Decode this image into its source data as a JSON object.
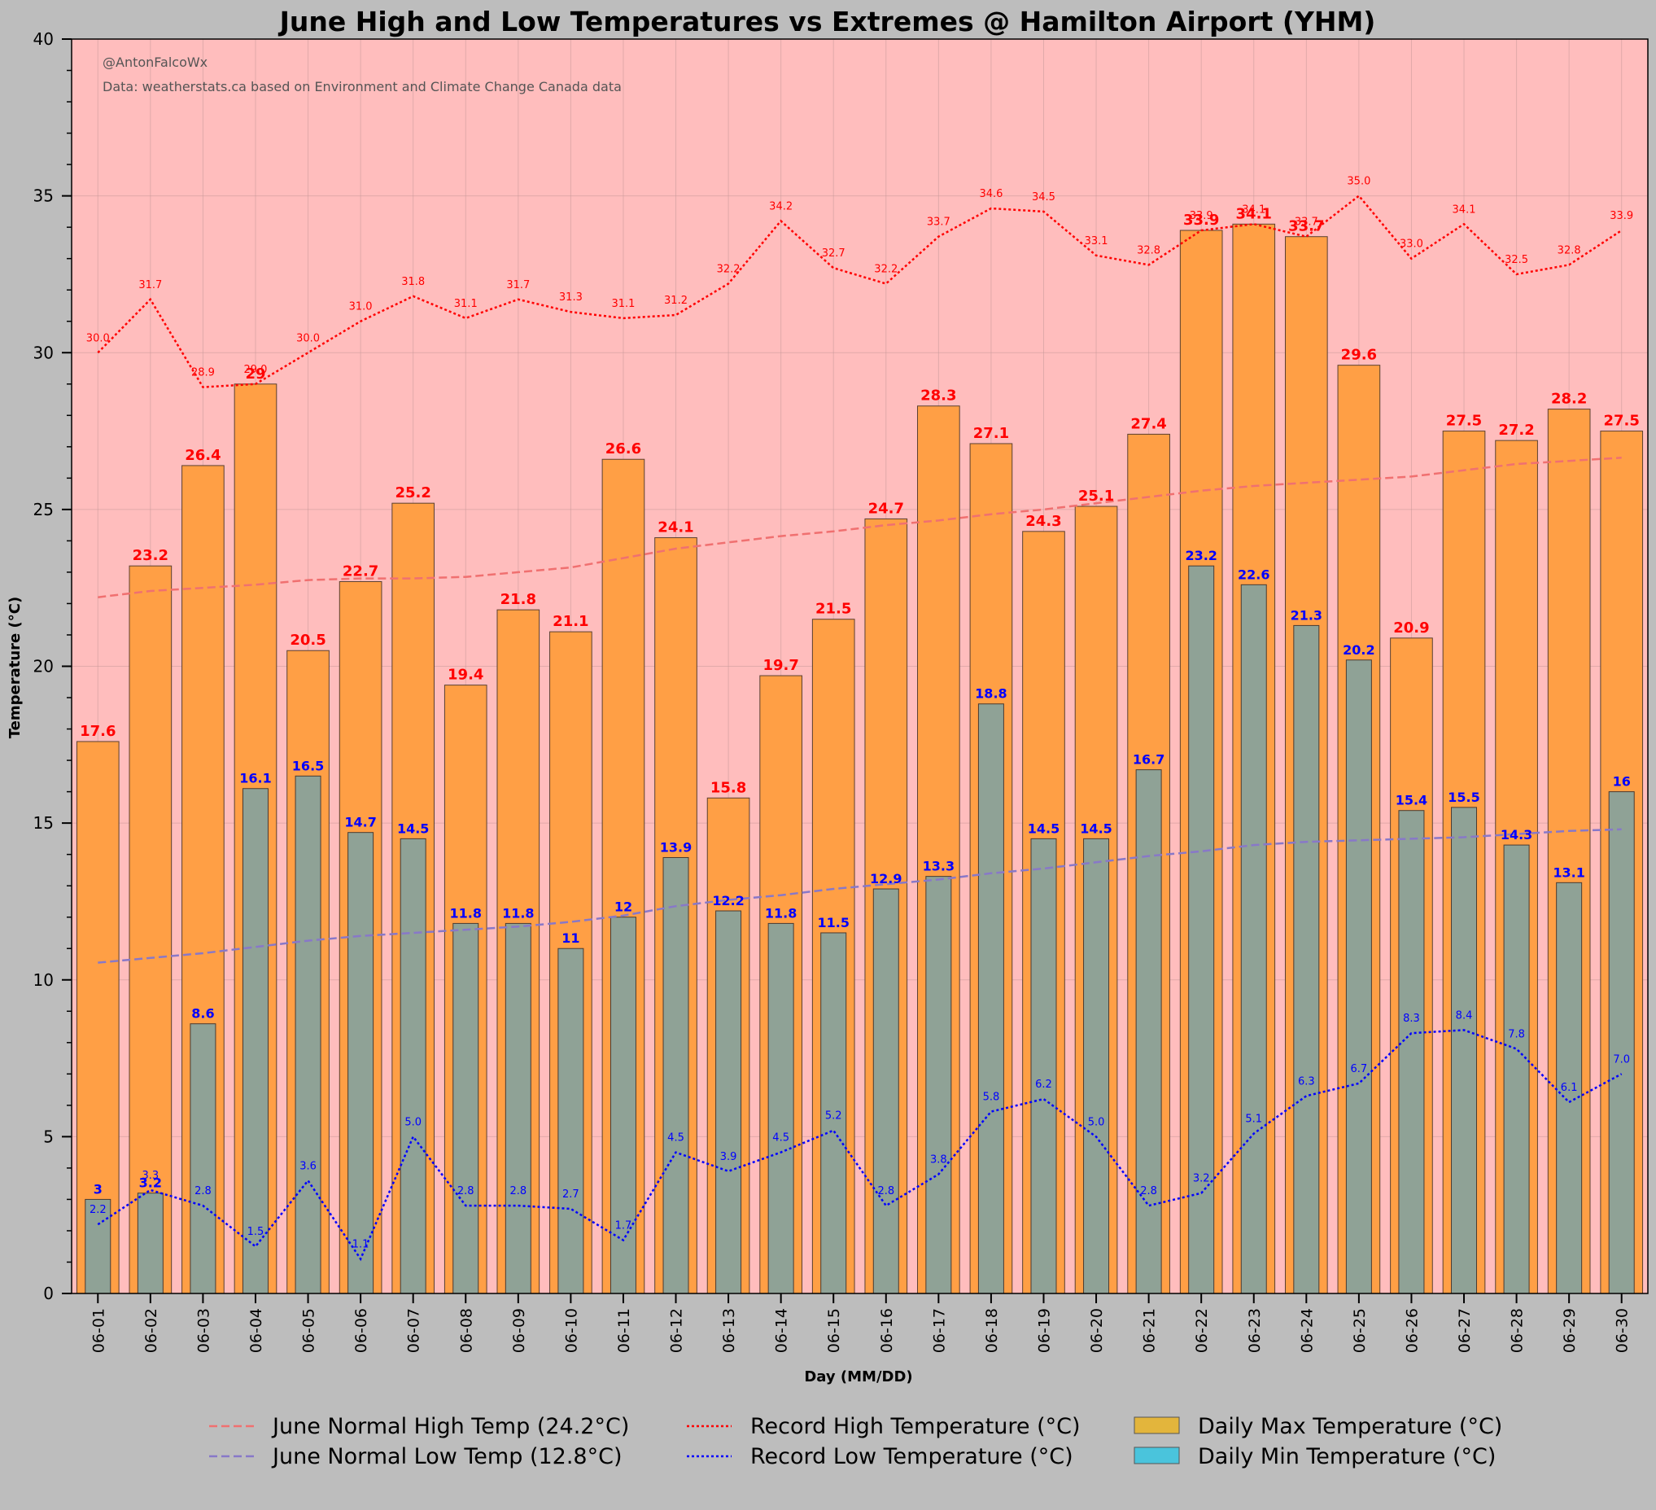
{
  "chart_data": {
    "type": "bar",
    "title": "June High and Low Temperatures vs Extremes @ Hamilton Airport (YHM)",
    "xlabel": "Day (MM/DD)",
    "ylabel": "Temperature (°C)",
    "ylim": [
      0,
      40
    ],
    "yticks": [
      0,
      5,
      10,
      15,
      20,
      25,
      30,
      35,
      40
    ],
    "grid": true,
    "credit": "@AntonFalcoWx",
    "source": "Data: weatherstats.ca based on Environment and Climate Change Canada data",
    "categories": [
      "06-01",
      "06-02",
      "06-03",
      "06-04",
      "06-05",
      "06-06",
      "06-07",
      "06-08",
      "06-09",
      "06-10",
      "06-11",
      "06-12",
      "06-13",
      "06-14",
      "06-15",
      "06-16",
      "06-17",
      "06-18",
      "06-19",
      "06-20",
      "06-21",
      "06-22",
      "06-23",
      "06-24",
      "06-25",
      "06-26",
      "06-27",
      "06-28",
      "06-29",
      "06-30"
    ],
    "series": [
      {
        "name": "Daily Max Temperature (°C)",
        "kind": "bar",
        "color": "#ff9f45",
        "values": [
          17.6,
          23.2,
          26.4,
          29,
          20.5,
          22.7,
          25.2,
          19.4,
          21.8,
          21.1,
          26.6,
          24.1,
          15.8,
          19.7,
          21.5,
          24.7,
          28.3,
          27.1,
          24.3,
          25.1,
          27.4,
          33.9,
          34.1,
          33.7,
          29.6,
          20.9,
          27.5,
          27.2,
          28.2,
          27.5
        ],
        "labels": [
          "17.6",
          "23.2",
          "26.4",
          "29",
          "20.5",
          "22.7",
          "25.2",
          "19.4",
          "21.8",
          "21.1",
          "26.6",
          "24.1",
          "15.8",
          "19.7",
          "21.5",
          "24.7",
          "28.3",
          "27.1",
          "24.3",
          "25.1",
          "27.4",
          "33.9",
          "34.1",
          "33.7",
          "29.6",
          "20.9",
          "27.5",
          "27.2",
          "28.2",
          "27.5"
        ]
      },
      {
        "name": "Daily Min Temperature (°C)",
        "kind": "bar",
        "color": "#8fa296",
        "values": [
          3,
          3.2,
          8.6,
          16.1,
          16.5,
          14.7,
          14.5,
          11.8,
          11.8,
          11,
          12,
          13.9,
          12.2,
          11.8,
          11.5,
          12.9,
          13.3,
          18.8,
          14.5,
          14.5,
          16.7,
          23.2,
          22.6,
          21.3,
          20.2,
          15.4,
          15.5,
          14.3,
          13.1,
          16
        ],
        "labels": [
          "3",
          "3.2",
          "8.6",
          "16.1",
          "16.5",
          "14.7",
          "14.5",
          "11.8",
          "11.8",
          "11",
          "12",
          "13.9",
          "12.2",
          "11.8",
          "11.5",
          "12.9",
          "13.3",
          "18.8",
          "14.5",
          "14.5",
          "16.7",
          "23.2",
          "22.6",
          "21.3",
          "20.2",
          "15.4",
          "15.5",
          "14.3",
          "13.1",
          "16"
        ]
      },
      {
        "name": "Record High Temperature (°C)",
        "kind": "line",
        "style": "dotted",
        "color": "#ff0000",
        "values": [
          30.0,
          31.7,
          28.9,
          29.0,
          30.0,
          31.0,
          31.8,
          31.1,
          31.7,
          31.3,
          31.1,
          31.2,
          32.2,
          34.2,
          32.7,
          32.2,
          33.7,
          34.6,
          34.5,
          33.1,
          32.8,
          33.9,
          34.1,
          33.7,
          35.0,
          33.0,
          34.1,
          32.5,
          32.8,
          33.9
        ],
        "labels": [
          "30.0",
          "31.7",
          "28.9",
          "29.0",
          "30.0",
          "31.0",
          "31.8",
          "31.1",
          "31.7",
          "31.3",
          "31.1",
          "31.2",
          "32.2",
          "34.2",
          "32.7",
          "32.2",
          "33.7",
          "34.6",
          "34.5",
          "33.1",
          "32.8",
          "33.9",
          "34.1",
          "33.7",
          "35.0",
          "33.0",
          "34.1",
          "32.5",
          "32.8",
          "33.9"
        ]
      },
      {
        "name": "Record Low Temperature (°C)",
        "kind": "line",
        "style": "dotted",
        "color": "#0000ff",
        "values": [
          2.2,
          3.3,
          2.8,
          1.5,
          3.6,
          1.1,
          5.0,
          2.8,
          2.8,
          2.7,
          1.7,
          4.5,
          3.9,
          4.5,
          5.2,
          2.8,
          3.8,
          5.8,
          6.2,
          5.0,
          2.8,
          3.2,
          5.1,
          6.3,
          6.7,
          8.3,
          8.4,
          7.8,
          6.1,
          7.0
        ],
        "labels": [
          "2.2",
          "3.3",
          "2.8",
          "1.5",
          "3.6",
          "1.1",
          "5.0",
          "2.8",
          "2.8",
          "2.7",
          "1.7",
          "4.5",
          "3.9",
          "4.5",
          "5.2",
          "2.8",
          "3.8",
          "5.8",
          "6.2",
          "5.0",
          "2.8",
          "3.2",
          "5.1",
          "6.3",
          "6.7",
          "8.3",
          "8.4",
          "7.8",
          "6.1",
          "7.0"
        ]
      },
      {
        "name": "June Normal High Temp (24.2°C)",
        "kind": "line",
        "style": "dashed",
        "color": "#f07070",
        "values": [
          22.2,
          22.4,
          22.5,
          22.6,
          22.75,
          22.8,
          22.8,
          22.85,
          23.0,
          23.15,
          23.45,
          23.75,
          23.95,
          24.15,
          24.3,
          24.5,
          24.65,
          24.85,
          25.0,
          25.2,
          25.4,
          25.6,
          25.75,
          25.85,
          25.95,
          26.05,
          26.25,
          26.45,
          26.55,
          26.65
        ]
      },
      {
        "name": "June Normal Low Temp (12.8°C)",
        "kind": "line",
        "style": "dashed",
        "color": "#8878c8",
        "values": [
          10.55,
          10.7,
          10.85,
          11.05,
          11.25,
          11.4,
          11.5,
          11.6,
          11.7,
          11.85,
          12.05,
          12.35,
          12.55,
          12.7,
          12.9,
          13.05,
          13.2,
          13.4,
          13.55,
          13.75,
          13.95,
          14.1,
          14.3,
          14.4,
          14.45,
          14.5,
          14.55,
          14.65,
          14.75,
          14.8
        ]
      }
    ],
    "legend": {
      "position": "bottom",
      "entries": [
        {
          "label": "June Normal High Temp (24.2°C)",
          "color": "#f07070",
          "style": "dashed"
        },
        {
          "label": "June Normal Low Temp (12.8°C)",
          "color": "#8878c8",
          "style": "dashed"
        },
        {
          "label": "Record High Temperature (°C)",
          "color": "#ff0000",
          "style": "dotted"
        },
        {
          "label": "Record Low Temperature (°C)",
          "color": "#0000ff",
          "style": "dotted"
        },
        {
          "label": "Daily Max Temperature (°C)",
          "color": "#e3b53c",
          "style": "patch"
        },
        {
          "label": "Daily Min Temperature (°C)",
          "color": "#4ac4dc",
          "style": "patch"
        }
      ]
    },
    "colors": {
      "plot_background": "#ffbdbd",
      "figure_background": "#bdbdbd",
      "max_label": "#ff0000",
      "min_label": "#0000ff"
    }
  }
}
